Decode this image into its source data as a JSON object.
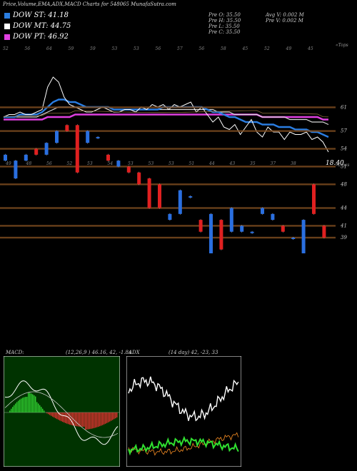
{
  "header": {
    "title": "Price,Volume,EMA,ADX,MACD Charts for 548065 MunafaSutra.com"
  },
  "legend": [
    {
      "label": "DOW ST: 41.18",
      "color": "#2a7de1"
    },
    {
      "label": "DOW MT: 44.75",
      "color": "#ffffff"
    },
    {
      "label": "DOW PT: 46.92",
      "color": "#e040e0"
    }
  ],
  "ohlc_left": [
    "Pre  O: 35.50",
    "Pre  H: 35.50",
    "Pre  L: 35.50",
    "Pre  C: 35.50"
  ],
  "ohlc_right": [
    "Avg V: 0.002  M",
    "Pre  V: 0.002  M"
  ],
  "labels": {
    "upper_tag": "«Tops",
    "lower_tag": "«Lows",
    "last_price": "18.40"
  },
  "colors": {
    "st": "#2a7de1",
    "mt": "#ffffff",
    "pt": "#e040e0",
    "up": "#2a6fe0",
    "down": "#e02020",
    "level": "#7a4a1e"
  },
  "chart_data": [
    {
      "type": "line",
      "name": "price-ema",
      "x": [
        1,
        2,
        3,
        4,
        5,
        6,
        7,
        8,
        9,
        10,
        11,
        12,
        13,
        14,
        15,
        16,
        17,
        18,
        19,
        20,
        21,
        22,
        23,
        24,
        25,
        26,
        27,
        28,
        29,
        30,
        31,
        32,
        33,
        34,
        35,
        36,
        37,
        38,
        39,
        40,
        41,
        42,
        43,
        44,
        45,
        46,
        47,
        48,
        49,
        50,
        51,
        52,
        53,
        54,
        55,
        56,
        57,
        58,
        59,
        60
      ],
      "series": [
        {
          "name": "price",
          "values": [
            44,
            45,
            45,
            46,
            45,
            45,
            46,
            47,
            56,
            60,
            58,
            52,
            49,
            48,
            47,
            46,
            46,
            47,
            48,
            47,
            46,
            46,
            47,
            47,
            46,
            48,
            47,
            49,
            48,
            49,
            47,
            49,
            48,
            49,
            50,
            46,
            48,
            45,
            42,
            44,
            40,
            39,
            41,
            37,
            40,
            43,
            38,
            36,
            40,
            38,
            38,
            35,
            38,
            37,
            37,
            38,
            35,
            36,
            34,
            30
          ]
        },
        {
          "name": "ema-st",
          "values": [
            44,
            44,
            44,
            45,
            45,
            45,
            45,
            46,
            48,
            50,
            51,
            51,
            50,
            50,
            49,
            48,
            48,
            48,
            48,
            48,
            47,
            47,
            47,
            47,
            47,
            47,
            47,
            47,
            47,
            48,
            48,
            48,
            48,
            48,
            48,
            48,
            48,
            47,
            46,
            46,
            45,
            44,
            44,
            43,
            42,
            42,
            42,
            41,
            41,
            41,
            40,
            40,
            40,
            39,
            39,
            39,
            38,
            38,
            37,
            36
          ]
        },
        {
          "name": "ema-mt",
          "values": [
            44,
            44,
            44,
            44,
            44,
            44,
            44,
            45,
            46,
            47,
            48,
            48,
            48,
            48,
            48,
            48,
            48,
            48,
            48,
            48,
            47,
            47,
            47,
            47,
            47,
            47,
            47,
            47,
            47,
            47,
            47,
            47,
            47,
            47,
            47,
            47,
            47,
            47,
            47,
            46,
            46,
            46,
            45,
            45,
            45,
            45,
            45,
            44,
            44,
            44,
            44,
            44,
            43,
            43,
            43,
            43,
            42,
            42,
            42,
            41
          ]
        },
        {
          "name": "ema-pt",
          "values": [
            43,
            43,
            43,
            43,
            43,
            43,
            43,
            43,
            44,
            44,
            44,
            44,
            44,
            45,
            45,
            45,
            45,
            45,
            45,
            45,
            45,
            45,
            45,
            45,
            45,
            45,
            45,
            45,
            45,
            45,
            45,
            45,
            45,
            45,
            45,
            45,
            45,
            45,
            45,
            45,
            45,
            45,
            45,
            45,
            45,
            45,
            45,
            44,
            44,
            44,
            44,
            44,
            44,
            44,
            44,
            44,
            44,
            44,
            43,
            43
          ]
        }
      ],
      "top_tick_labels": [
        "52",
        "56",
        "64",
        "59",
        "59",
        "53",
        "53",
        "56",
        "57",
        "56",
        "58",
        "45",
        "52",
        "49",
        "45"
      ],
      "bottom_tick_labels": [
        "49",
        "48",
        "56",
        "52",
        "53",
        "54",
        "53",
        "53",
        "53",
        "51",
        "44",
        "43",
        "35",
        "37",
        "38"
      ]
    },
    {
      "type": "bar",
      "name": "volume-price-bands",
      "right_axis_labels": [
        "61",
        "57",
        "54",
        "51",
        "48",
        "44",
        "41",
        "39"
      ],
      "candles": [
        {
          "x": 1,
          "lo": 52,
          "hi": 53,
          "up": true
        },
        {
          "x": 2,
          "lo": 49,
          "hi": 52,
          "up": true
        },
        {
          "x": 3,
          "lo": 52,
          "hi": 53,
          "up": true
        },
        {
          "x": 4,
          "lo": 53,
          "hi": 54,
          "up": false
        },
        {
          "x": 5,
          "lo": 53,
          "hi": 55,
          "up": true
        },
        {
          "x": 6,
          "lo": 55,
          "hi": 57,
          "up": true
        },
        {
          "x": 7,
          "lo": 57,
          "hi": 58,
          "up": false
        },
        {
          "x": 8,
          "lo": 50,
          "hi": 58,
          "up": false
        },
        {
          "x": 9,
          "lo": 55,
          "hi": 57,
          "up": true
        },
        {
          "x": 10,
          "lo": 56,
          "hi": 56,
          "up": true
        },
        {
          "x": 11,
          "lo": 52,
          "hi": 53,
          "up": false
        },
        {
          "x": 12,
          "lo": 51,
          "hi": 52,
          "up": true
        },
        {
          "x": 13,
          "lo": 50,
          "hi": 51,
          "up": false
        },
        {
          "x": 14,
          "lo": 48,
          "hi": 50,
          "up": false
        },
        {
          "x": 15,
          "lo": 44,
          "hi": 49,
          "up": false
        },
        {
          "x": 16,
          "lo": 44,
          "hi": 48,
          "up": false
        },
        {
          "x": 17,
          "lo": 42,
          "hi": 43,
          "up": true
        },
        {
          "x": 18,
          "lo": 43,
          "hi": 47,
          "up": true
        },
        {
          "x": 19,
          "lo": 46,
          "hi": 46,
          "up": true
        },
        {
          "x": 20,
          "lo": 40,
          "hi": 42,
          "up": false
        },
        {
          "x": 21,
          "lo": 36,
          "hi": 43,
          "up": true
        },
        {
          "x": 22,
          "lo": 37,
          "hi": 42,
          "up": false
        },
        {
          "x": 23,
          "lo": 40,
          "hi": 44,
          "up": true
        },
        {
          "x": 24,
          "lo": 40,
          "hi": 41,
          "up": true
        },
        {
          "x": 25,
          "lo": 40,
          "hi": 40,
          "up": true
        },
        {
          "x": 26,
          "lo": 43,
          "hi": 44,
          "up": true
        },
        {
          "x": 27,
          "lo": 42,
          "hi": 43,
          "up": true
        },
        {
          "x": 28,
          "lo": 40,
          "hi": 41,
          "up": false
        },
        {
          "x": 29,
          "lo": 39,
          "hi": 39,
          "up": true
        },
        {
          "x": 30,
          "lo": 35,
          "hi": 42,
          "up": true
        },
        {
          "x": 31,
          "lo": 43,
          "hi": 48,
          "up": false
        },
        {
          "x": 32,
          "lo": 39,
          "hi": 41,
          "up": false
        }
      ]
    },
    {
      "type": "bar",
      "name": "macd",
      "title": "MACD:",
      "params": "(12,26,9 ) 46.16,  42,  -1.84"
    },
    {
      "type": "line",
      "name": "adx",
      "title": "ADX",
      "params": "(14  day) 42,  -23,  33"
    }
  ]
}
